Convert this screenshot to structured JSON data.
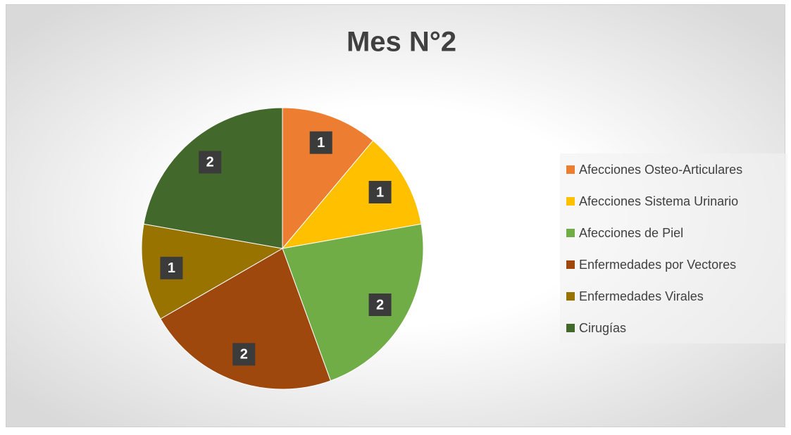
{
  "chart_data": {
    "type": "pie",
    "title": "Mes N°2",
    "categories": [
      "Afecciones Osteo-Articulares",
      "Afecciones Sistema Urinario",
      "Afecciones de Piel",
      "Enfermedades por Vectores",
      "Enfermedades Virales",
      "Cirugías"
    ],
    "values": [
      1,
      1,
      2,
      2,
      1,
      2
    ],
    "colors": [
      "#ed7d31",
      "#ffc000",
      "#70ad47",
      "#9e480e",
      "#997300",
      "#43682b"
    ],
    "legend": "right"
  }
}
